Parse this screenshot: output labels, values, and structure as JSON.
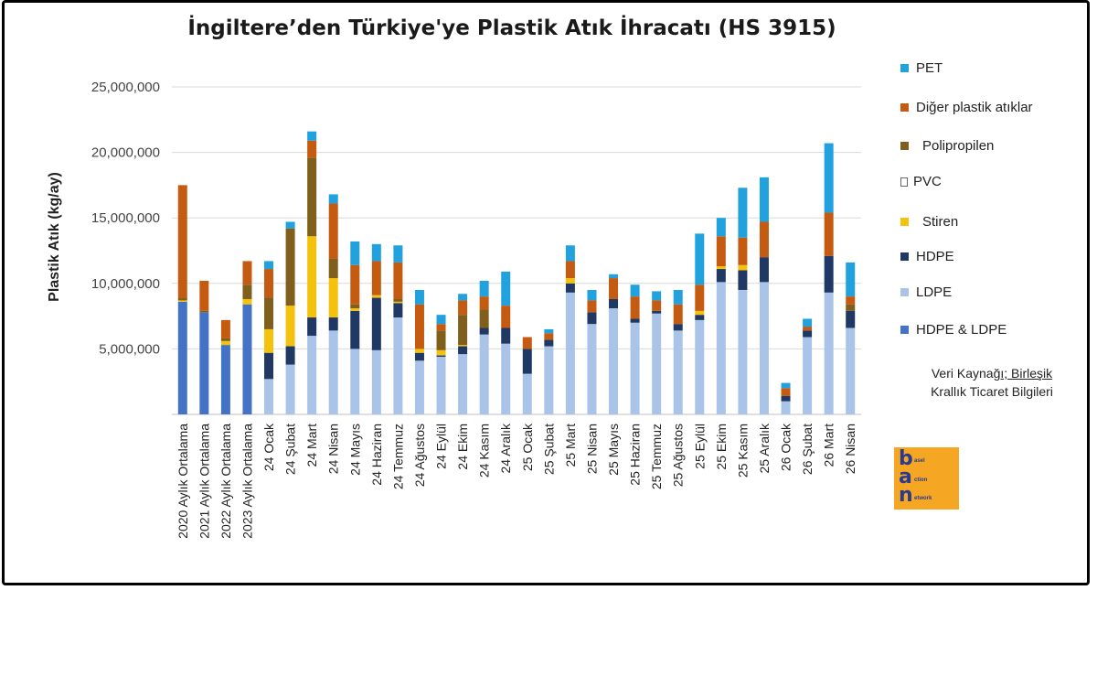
{
  "chart_data": {
    "type": "bar",
    "stacked": true,
    "title": "İngiltere’den Türkiye'ye Plastik Atık İhracatı (HS 3915)",
    "ylabel": "Plastik Atık (kg/ay)",
    "xlabel": "",
    "ylim": [
      0,
      25000000
    ],
    "yticks": [
      "5,000,000",
      "10,000,000",
      "15,000,000",
      "20,000,000",
      "25,000,000"
    ],
    "ytick_values": [
      5000000,
      10000000,
      15000000,
      20000000,
      25000000
    ],
    "grid": true,
    "legend_position": "right",
    "categories": [
      "2020 Aylık Ortalama",
      "2021 Aylık Ortalama",
      "2022 Aylık Ortalama",
      "2023 Aylık Ortalama",
      "24 Ocak",
      "24 Şubat",
      "24 Mart",
      "24 Nisan",
      "24 Mayıs",
      "24 Haziran",
      "24 Temmuz",
      "24 Ağustos",
      "24 Eylül",
      "24 Ekim",
      "24 Kasım",
      "24 Aralık",
      "25 Ocak",
      "25 Şubat",
      "25 Mart",
      "25 Nisan",
      "25 Mayıs",
      "25 Haziran",
      "25 Temmuz",
      "25 Ağustos",
      "25 Eylül",
      "25 Ekim",
      "25 Kasım",
      "25 Aralık",
      "26 Ocak",
      "26 Şubat",
      "26 Mart",
      "26 Nisan"
    ],
    "series": [
      {
        "name": "HDPE & LDPE",
        "color": "#4472c4",
        "values": [
          8600000,
          7800000,
          5300000,
          8400000,
          0,
          0,
          0,
          0,
          0,
          0,
          0,
          0,
          0,
          0,
          0,
          0,
          0,
          0,
          0,
          0,
          0,
          0,
          0,
          0,
          0,
          0,
          0,
          0,
          0,
          0,
          0,
          0
        ]
      },
      {
        "name": "LDPE",
        "color": "#a9c4e8",
        "values": [
          0,
          0,
          0,
          0,
          2700000,
          3800000,
          6000000,
          6400000,
          5000000,
          4900000,
          7400000,
          4100000,
          4400000,
          4600000,
          6100000,
          5400000,
          3100000,
          5200000,
          9300000,
          6900000,
          8100000,
          7000000,
          7700000,
          6400000,
          7200000,
          10100000,
          9500000,
          10100000,
          1000000,
          5900000,
          9300000,
          6600000
        ]
      },
      {
        "name": "HDPE",
        "color": "#1f3864",
        "values": [
          0,
          0,
          0,
          0,
          2000000,
          1400000,
          1400000,
          1000000,
          2900000,
          4000000,
          1100000,
          600000,
          100000,
          600000,
          500000,
          1200000,
          1900000,
          500000,
          700000,
          900000,
          700000,
          300000,
          200000,
          500000,
          400000,
          1000000,
          1500000,
          1900000,
          400000,
          500000,
          2800000,
          1300000
        ]
      },
      {
        "name": "Stiren",
        "color": "#f4c20d",
        "values": [
          100000,
          0,
          300000,
          400000,
          1800000,
          3100000,
          6200000,
          3000000,
          200000,
          200000,
          100000,
          300000,
          400000,
          100000,
          0,
          0,
          0,
          0,
          400000,
          0,
          0,
          0,
          0,
          0,
          300000,
          200000,
          400000,
          0,
          0,
          0,
          0,
          0
        ]
      },
      {
        "name": "PVC",
        "color": "#e8e8e8",
        "values": [
          0,
          0,
          0,
          0,
          0,
          0,
          0,
          0,
          0,
          0,
          0,
          0,
          0,
          0,
          0,
          0,
          0,
          0,
          0,
          0,
          0,
          0,
          0,
          0,
          0,
          0,
          0,
          0,
          0,
          0,
          0,
          0
        ]
      },
      {
        "name": "Polipropilen",
        "color": "#7f5f1b",
        "values": [
          200000,
          100000,
          200000,
          1100000,
          2400000,
          5900000,
          6000000,
          1500000,
          300000,
          0,
          200000,
          0,
          1500000,
          2300000,
          1400000,
          0,
          0,
          0,
          0,
          0,
          0,
          0,
          0,
          0,
          0,
          0,
          0,
          0,
          0,
          0,
          0,
          500000
        ]
      },
      {
        "name": "Diğer plastik atıklar",
        "color": "#c55a11",
        "values": [
          8600000,
          2300000,
          1400000,
          1800000,
          2200000,
          0,
          1300000,
          4200000,
          3000000,
          2600000,
          2800000,
          3400000,
          500000,
          1100000,
          1000000,
          1700000,
          900000,
          500000,
          1300000,
          900000,
          1600000,
          1700000,
          800000,
          1500000,
          2000000,
          2300000,
          2100000,
          2700000,
          600000,
          300000,
          3300000,
          600000
        ]
      },
      {
        "name": "PET",
        "color": "#21a1de",
        "values": [
          0,
          0,
          0,
          0,
          600000,
          500000,
          700000,
          700000,
          1800000,
          1300000,
          1300000,
          1100000,
          700000,
          500000,
          1200000,
          2600000,
          0,
          300000,
          1200000,
          800000,
          300000,
          900000,
          700000,
          1100000,
          3900000,
          1400000,
          3800000,
          3400000,
          400000,
          600000,
          5300000,
          2600000
        ]
      }
    ]
  },
  "legend_order": [
    "PET",
    "Diğer plastik atıklar",
    "Polipropilen",
    "PVC",
    "Stiren",
    "HDPE",
    "LDPE",
    "HDPE & LDPE"
  ],
  "legend_labels": {
    "pet": "PET",
    "diger": "Diğer plastik atıklar",
    "polipropilen": "Polipropilen",
    "pvc": "PVC",
    "stiren": "Stiren",
    "hdpe": "HDPE",
    "ldpe": "LDPE",
    "hdpe_ldpe": "HDPE & LDPE"
  },
  "source": {
    "line1_a": "Veri Kayna",
    "line1_b": "ğı; Birleşik",
    "line2": "Krallık Ticaret Bilgileri"
  },
  "logo": {
    "letters": [
      "b",
      "a",
      "n"
    ],
    "words": [
      "asel",
      "ction",
      "etwork"
    ]
  }
}
